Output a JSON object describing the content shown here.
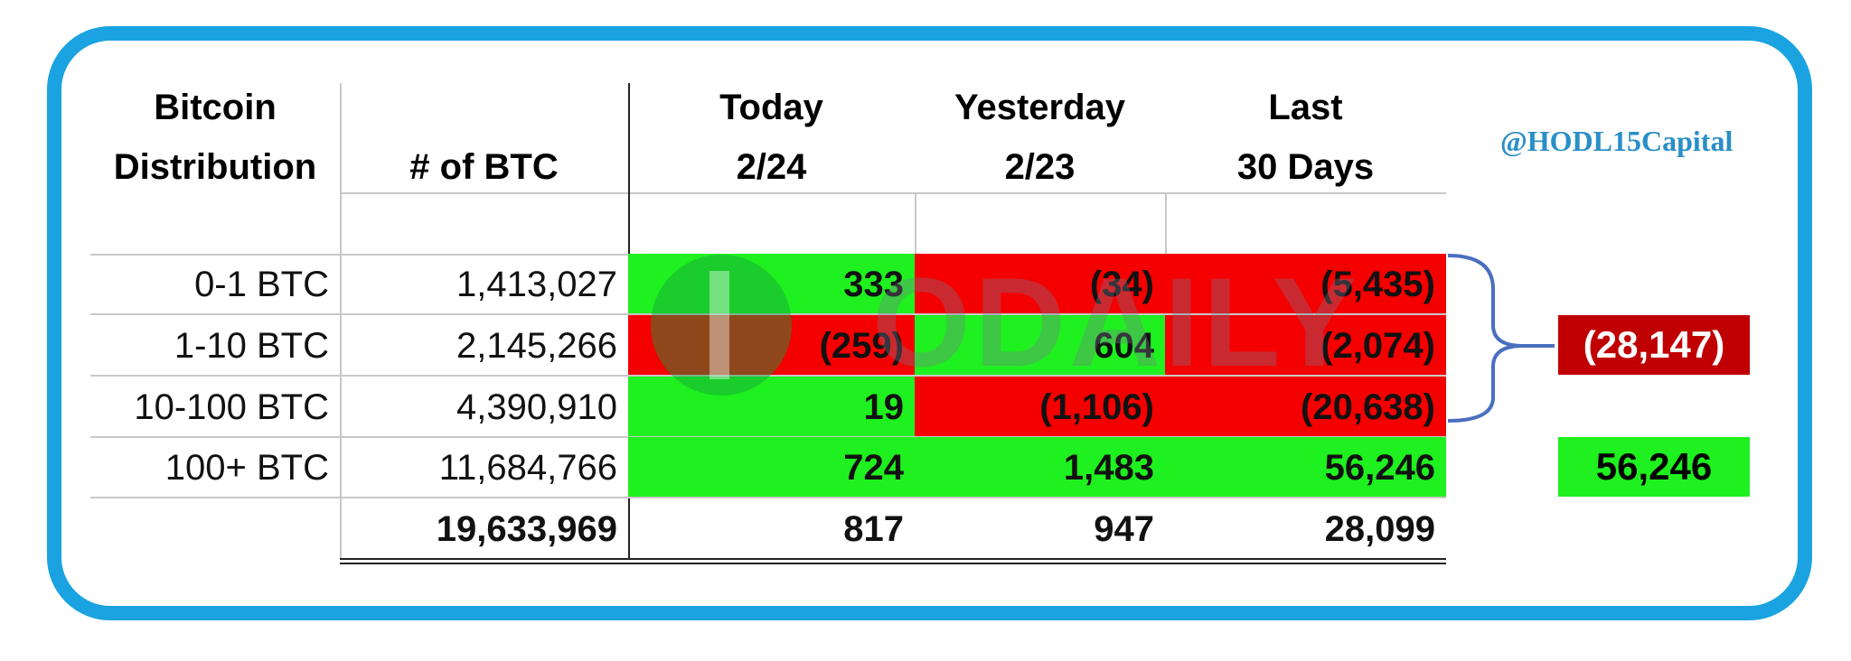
{
  "table": {
    "header": [
      [
        "Bitcoin",
        "Distribution"
      ],
      [
        "# of BTC"
      ],
      [
        "Today",
        "2/24"
      ],
      [
        "Yesterday",
        "2/23"
      ],
      [
        "Last",
        "30 Days"
      ]
    ],
    "rows": [
      [
        "0-1 BTC",
        "1,413,027",
        "333",
        "(34)",
        "(5,435)"
      ],
      [
        "1-10 BTC",
        "2,145,266",
        "(259)",
        "604",
        "(2,074)"
      ],
      [
        "10-100 BTC",
        "4,390,910",
        "19",
        "(1,106)",
        "(20,638)"
      ],
      [
        "100+ BTC",
        "11,684,766",
        "724",
        "1,483",
        "56,246"
      ]
    ],
    "totals": [
      "19,633,969",
      "817",
      "947",
      "28,099"
    ]
  },
  "summary": [
    "(28,147)",
    "56,246"
  ],
  "handle": "@HODL15Capital",
  "watermark": "ODAILY"
}
